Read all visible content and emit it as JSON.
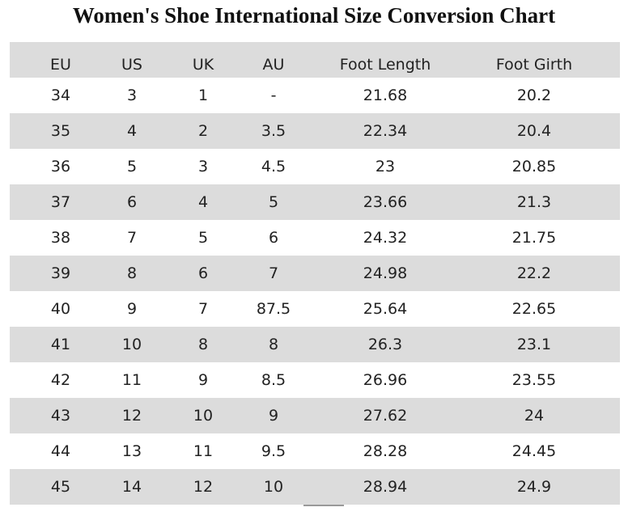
{
  "header": {
    "title": "Women's Shoe International Size Conversion Chart"
  },
  "table": {
    "columns": [
      "EU",
      "US",
      "UK",
      "AU",
      "Foot Length",
      "Foot Girth"
    ],
    "rows": [
      [
        "34",
        "3",
        "1",
        "-",
        "21.68",
        "20.2"
      ],
      [
        "35",
        "4",
        "2",
        "3.5",
        "22.34",
        "20.4"
      ],
      [
        "36",
        "5",
        "3",
        "4.5",
        "23",
        "20.85"
      ],
      [
        "37",
        "6",
        "4",
        "5",
        "23.66",
        "21.3"
      ],
      [
        "38",
        "7",
        "5",
        "6",
        "24.32",
        "21.75"
      ],
      [
        "39",
        "8",
        "6",
        "7",
        "24.98",
        "22.2"
      ],
      [
        "40",
        "9",
        "7",
        "87.5",
        "25.64",
        "22.65"
      ],
      [
        "41",
        "10",
        "8",
        "8",
        "26.3",
        "23.1"
      ],
      [
        "42",
        "11",
        "9",
        "8.5",
        "26.96",
        "23.55"
      ],
      [
        "43",
        "12",
        "10",
        "9",
        "27.62",
        "24"
      ],
      [
        "44",
        "13",
        "11",
        "9.5",
        "28.28",
        "24.45"
      ],
      [
        "45",
        "14",
        "12",
        "10",
        "28.94",
        "24.9"
      ]
    ]
  }
}
